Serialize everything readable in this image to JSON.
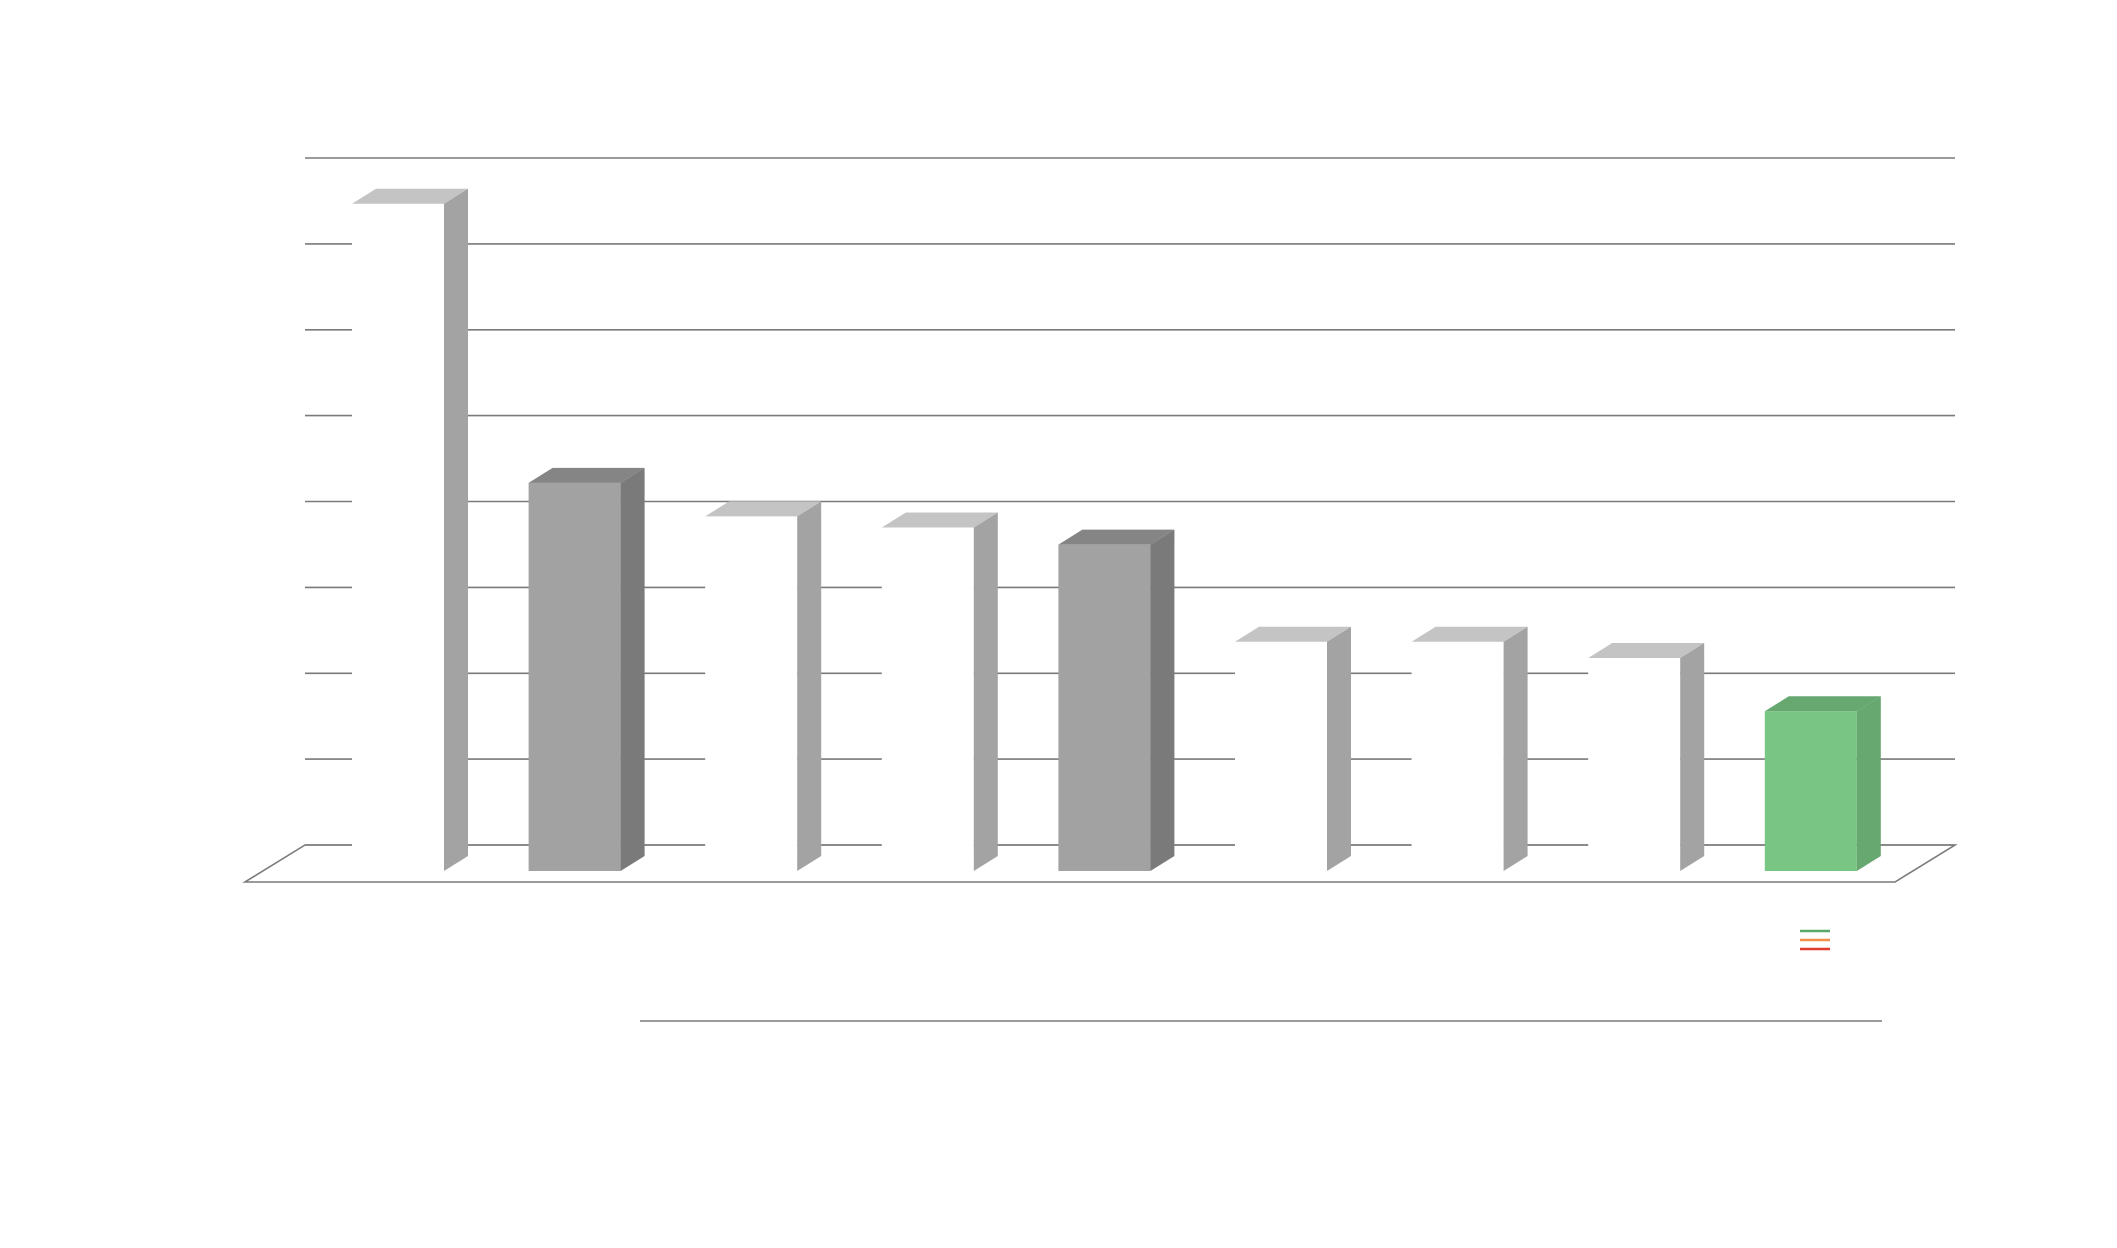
{
  "chart_data": {
    "type": "bar",
    "title": "",
    "xlabel": "",
    "ylabel": "",
    "grid": true,
    "ylim": [
      0,
      8
    ],
    "categories": [
      "",
      "",
      "",
      "",
      "",
      "",
      "",
      "",
      ""
    ],
    "values": [
      7.77,
      4.52,
      4.13,
      4.0,
      3.8,
      2.67,
      2.67,
      2.48,
      1.86
    ],
    "bar_colors": [
      "#ffffff",
      "#a2a2a2",
      "#ffffff",
      "#ffffff",
      "#a2a2a2",
      "#ffffff",
      "#ffffff",
      "#ffffff",
      "#79c584"
    ],
    "highlight_color": "#79c584",
    "gridline_color": "#7a7a7a"
  }
}
